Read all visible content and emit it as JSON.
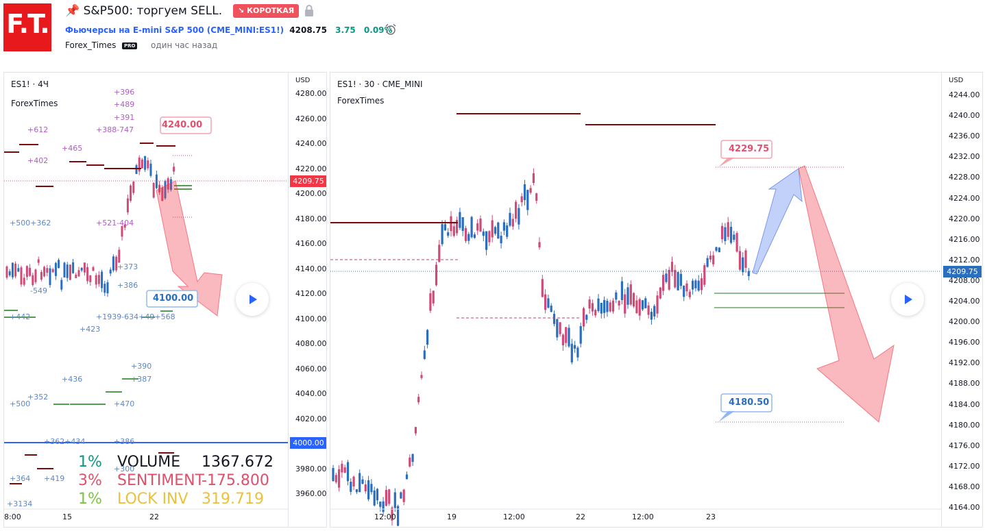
{
  "header": {
    "logo_text": "F.T.",
    "title": "📌 S&P500: торгуем SELL.",
    "badge": "↘ КОРОТКАЯ",
    "symbol_name": "Фьючерсы на E-mini S&P 500",
    "symbol_code": "(CME_MINI:ES1!)",
    "price": "4208.75",
    "change": "3.75",
    "change_pct": "0.09%",
    "author": "Forex_Times",
    "pro": "PRO",
    "posted": "один час назад"
  },
  "left_chart": {
    "title": "ES1! · 4Ч",
    "source": "ForexTimes",
    "currency": "USD",
    "y_ticks": [
      "4280.00",
      "4260.00",
      "4240.00",
      "4220.00",
      "4200.00",
      "4180.00",
      "4160.00",
      "4140.00",
      "4120.00",
      "4100.00",
      "4080.00",
      "4060.00",
      "4040.00",
      "4020.00",
      "3980.00",
      "3960.00"
    ],
    "x_ticks": [
      "8:00",
      "15",
      "22"
    ],
    "price_label": "4209.75",
    "level_label": "4000.00",
    "callout_top": "4240.00",
    "callout_bottom": "4100.00",
    "pink_notes": [
      "+396",
      "+489",
      "+391",
      "+612",
      "+388-747",
      "+465",
      "+402",
      "+521-404"
    ],
    "blue_notes": [
      "+500+362",
      "-549",
      "+373",
      "+386",
      "+442",
      "+423",
      "+1939-634+49+568",
      "+390",
      "+387",
      "+436",
      "+500",
      "+352",
      "+470",
      "+362+434",
      "+386",
      "+364",
      "+419",
      "+300",
      "+3134"
    ],
    "stats": [
      {
        "pct": "1%",
        "name": "VOLUME",
        "value": "1367.672"
      },
      {
        "pct": "3%",
        "name": "SENTIMENT",
        "value": "-175.800"
      },
      {
        "pct": "1%",
        "name": "LOCK INV",
        "value": "319.719"
      }
    ]
  },
  "right_chart": {
    "title": "ES1! · 30 · CME_MINI",
    "source": "ForexTimes",
    "currency": "USD",
    "y_ticks": [
      "4244.00",
      "4240.00",
      "4236.00",
      "4232.00",
      "4228.00",
      "4224.00",
      "4220.00",
      "4216.00",
      "4212.00",
      "4208.00",
      "4204.00",
      "4200.00",
      "4196.00",
      "4192.00",
      "4188.00",
      "4184.00",
      "4180.00",
      "4176.00",
      "4172.00",
      "4168.00",
      "4164.00"
    ],
    "x_ticks": [
      "12:00",
      "19",
      "12:00",
      "22",
      "12:00",
      "23"
    ],
    "price_label": "4209.75",
    "callout_top": "4229.75",
    "callout_bottom": "4180.50"
  },
  "colors": {
    "up": "#2a6ebf",
    "down": "#d04a78",
    "brand": "#e8191c",
    "price_tag": "#f23645",
    "level_blue": "#2962ff",
    "dark_red": "#7a0a0a",
    "green": "#1b7a1b"
  }
}
